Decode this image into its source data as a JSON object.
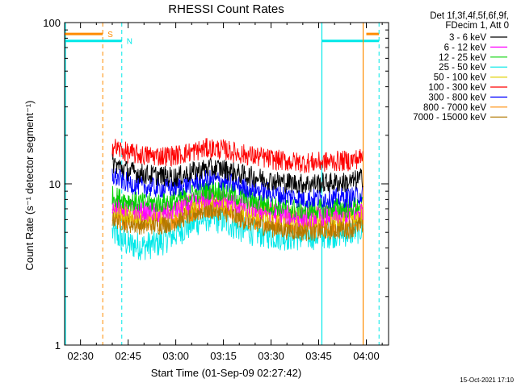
{
  "chart_data": {
    "type": "line",
    "title": "RHESSI Count Rates",
    "xlabel": "Start Time (01-Sep-09 02:27:42)",
    "ylabel": "Count Rate (s⁻¹ detector segment⁻¹)",
    "y_scale": "log",
    "ylim": [
      1,
      100
    ],
    "xlim": [
      "02:25",
      "04:07"
    ],
    "x_ticks": [
      "02:30",
      "02:45",
      "03:00",
      "03:15",
      "03:30",
      "03:45",
      "04:00"
    ],
    "y_ticks": [
      {
        "value": 1,
        "label": "1"
      },
      {
        "value": 10,
        "label": "10"
      },
      {
        "value": 100,
        "label": "100"
      }
    ],
    "legend_header": [
      "Det 1f,3f,4f,5f,6f,9f,",
      "FDecim 1, Att 0"
    ],
    "legend_position": "top-right, outside plot",
    "series": [
      {
        "name": "3 - 6 keV",
        "color": "#000000",
        "x": [
          "02:40",
          "02:45",
          "02:50",
          "02:55",
          "03:00",
          "03:05",
          "03:10",
          "03:15",
          "03:20",
          "03:25",
          "03:30",
          "03:35",
          "03:40",
          "03:45",
          "03:50",
          "03:55",
          "03:59"
        ],
        "y": [
          13.5,
          12.0,
          11.5,
          11.2,
          11.0,
          11.8,
          12.5,
          12.4,
          11.5,
          11.0,
          10.5,
          10.2,
          10.0,
          10.1,
          10.2,
          10.2,
          11.0
        ]
      },
      {
        "name": "6 - 12 keV",
        "color": "#ff00ff",
        "x": [
          "02:40",
          "02:45",
          "02:50",
          "02:55",
          "03:00",
          "03:05",
          "03:10",
          "03:15",
          "03:20",
          "03:25",
          "03:30",
          "03:35",
          "03:40",
          "03:45",
          "03:50",
          "03:55",
          "03:59"
        ],
        "y": [
          7.6,
          7.0,
          6.8,
          6.6,
          6.9,
          7.6,
          8.2,
          8.0,
          7.4,
          7.0,
          6.7,
          6.4,
          6.2,
          6.3,
          6.4,
          6.5,
          6.9
        ]
      },
      {
        "name": "12 - 25 keV",
        "color": "#00d000",
        "x": [
          "02:40",
          "02:45",
          "02:50",
          "02:55",
          "03:00",
          "03:05",
          "03:10",
          "03:15",
          "03:20",
          "03:25",
          "03:30",
          "03:35",
          "03:40",
          "03:45",
          "03:50",
          "03:55",
          "03:59"
        ],
        "y": [
          8.4,
          7.9,
          7.6,
          7.6,
          7.9,
          8.6,
          9.2,
          9.0,
          8.3,
          7.8,
          7.4,
          7.1,
          6.9,
          7.0,
          7.1,
          7.1,
          7.6
        ]
      },
      {
        "name": "25 - 50 keV",
        "color": "#00e8e8",
        "x": [
          "02:40",
          "02:45",
          "02:50",
          "02:55",
          "03:00",
          "03:05",
          "03:10",
          "03:15",
          "03:20",
          "03:25",
          "03:30",
          "03:35",
          "03:40",
          "03:45",
          "03:50",
          "03:55",
          "03:59"
        ],
        "y": [
          5.0,
          4.2,
          4.1,
          4.3,
          4.9,
          5.6,
          6.2,
          5.9,
          5.3,
          5.0,
          4.8,
          4.7,
          4.7,
          4.8,
          4.9,
          5.0,
          5.3
        ]
      },
      {
        "name": "50 - 100 keV",
        "color": "#e0d000",
        "x": [
          "02:40",
          "02:45",
          "02:50",
          "02:55",
          "03:00",
          "03:05",
          "03:10",
          "03:15",
          "03:20",
          "03:25",
          "03:30",
          "03:35",
          "03:40",
          "03:45",
          "03:50",
          "03:55",
          "03:59"
        ],
        "y": [
          7.0,
          6.6,
          6.5,
          6.5,
          6.9,
          7.6,
          8.1,
          7.9,
          7.2,
          6.8,
          6.5,
          6.3,
          6.2,
          6.3,
          6.3,
          6.4,
          6.8
        ]
      },
      {
        "name": "100 - 300 keV",
        "color": "#ff0000",
        "x": [
          "02:40",
          "02:45",
          "02:50",
          "02:55",
          "03:00",
          "03:05",
          "03:10",
          "03:15",
          "03:20",
          "03:25",
          "03:30",
          "03:35",
          "03:40",
          "03:45",
          "03:50",
          "03:55",
          "03:59"
        ],
        "y": [
          17.0,
          15.5,
          15.0,
          14.9,
          15.0,
          15.8,
          16.6,
          16.3,
          15.4,
          14.8,
          14.2,
          13.8,
          13.5,
          13.6,
          13.8,
          13.9,
          14.6
        ]
      },
      {
        "name": "300 - 800 keV",
        "color": "#0000ff",
        "x": [
          "02:40",
          "02:45",
          "02:50",
          "02:55",
          "03:00",
          "03:05",
          "03:10",
          "03:15",
          "03:20",
          "03:25",
          "03:30",
          "03:35",
          "03:40",
          "03:45",
          "03:50",
          "03:55",
          "03:59"
        ],
        "y": [
          11.2,
          10.1,
          9.6,
          9.4,
          9.5,
          10.1,
          10.6,
          10.4,
          9.7,
          9.2,
          8.8,
          8.4,
          8.1,
          8.1,
          8.2,
          8.2,
          8.7
        ]
      },
      {
        "name": "800 - 7000 keV",
        "color": "#ff8c00",
        "x": [
          "02:40",
          "02:45",
          "02:50",
          "02:55",
          "03:00",
          "03:05",
          "03:10",
          "03:15",
          "03:20",
          "03:25",
          "03:30",
          "03:35",
          "03:40",
          "03:45",
          "03:50",
          "03:55",
          "03:59"
        ],
        "y": [
          6.4,
          5.9,
          5.8,
          5.8,
          6.1,
          6.7,
          7.2,
          7.0,
          6.3,
          5.9,
          5.6,
          5.4,
          5.3,
          5.3,
          5.4,
          5.5,
          5.9
        ]
      },
      {
        "name": "7000 - 15000 keV",
        "color": "#b07800",
        "x": [
          "02:40",
          "02:45",
          "02:50",
          "02:55",
          "03:00",
          "03:05",
          "03:10",
          "03:15",
          "03:20",
          "03:25",
          "03:30",
          "03:35",
          "03:40",
          "03:45",
          "03:50",
          "03:55",
          "03:59"
        ],
        "y": [
          6.2,
          5.7,
          5.6,
          5.6,
          5.9,
          6.5,
          7.0,
          6.8,
          6.1,
          5.7,
          5.4,
          5.2,
          5.1,
          5.1,
          5.2,
          5.3,
          5.7
        ]
      }
    ],
    "annotations": [
      {
        "label": "S",
        "color": "#ff8c00",
        "bar": [
          "02:25",
          "02:37"
        ],
        "dashed_line": "02:37",
        "level": 85
      },
      {
        "label": "N",
        "color": "#00e8e8",
        "bar": [
          "02:25",
          "02:43"
        ],
        "dashed_line": "02:43",
        "level": 77
      },
      {
        "label": "",
        "color": "#00e8e8",
        "bar": [
          "03:46",
          "04:04"
        ],
        "solid_line": "03:46",
        "level": 77
      },
      {
        "label": "",
        "color": "#ff8c00",
        "bar": [
          "04:00",
          "04:04"
        ],
        "solid_line": "03:59",
        "level": 85
      },
      {
        "label": "",
        "color": "#00e8e8",
        "dashed_line": "04:04"
      }
    ],
    "solid_marker_lines": [
      {
        "x": "02:25",
        "color": "#00e8e8"
      }
    ],
    "data_start": "02:40",
    "data_end": "03:59"
  },
  "footer": {
    "timestamp": "15-Oct-2021 17:10"
  }
}
